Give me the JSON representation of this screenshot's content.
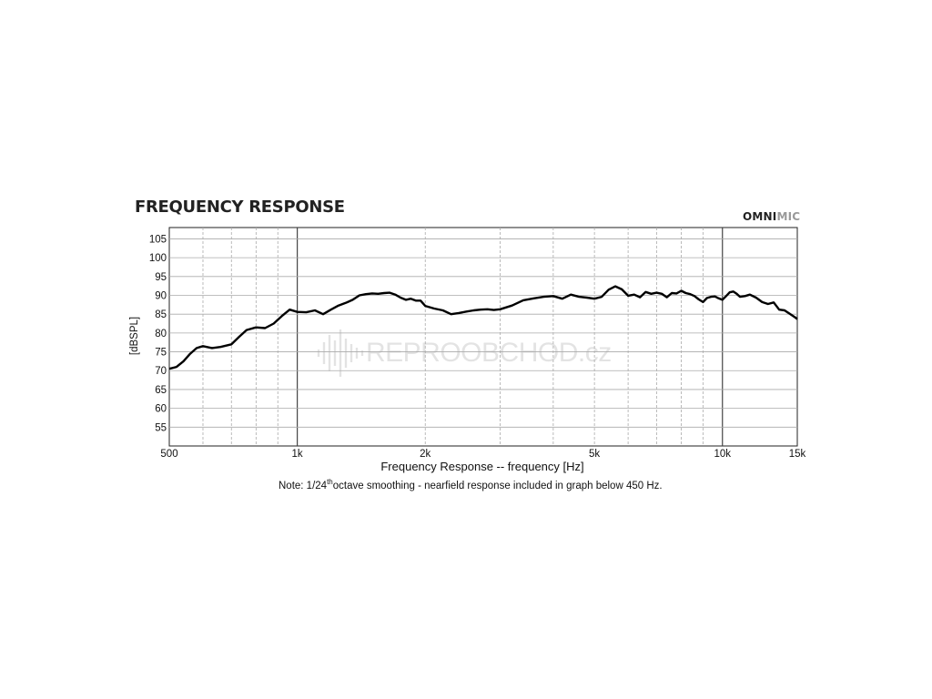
{
  "brand": {
    "part1": "OMNI",
    "part2": "MIC"
  },
  "watermark": {
    "text": "REPROOBCHOD.cz"
  },
  "chart_data": {
    "type": "line",
    "title": "FREQUENCY RESPONSE",
    "xlabel": "Frequency Response -- frequency [Hz]",
    "ylabel": "[dBSPL]",
    "note": {
      "before": "Note: 1/24",
      "sup": "th",
      "after": "octave smoothing - nearfield response included in graph below 450 Hz."
    },
    "x_scale": "log",
    "xlim": [
      500,
      15000
    ],
    "ylim": [
      50,
      108
    ],
    "x_ticks": [
      {
        "value": 500,
        "label": "500"
      },
      {
        "value": 1000,
        "label": "1k"
      },
      {
        "value": 2000,
        "label": "2k"
      },
      {
        "value": 5000,
        "label": "5k"
      },
      {
        "value": 10000,
        "label": "10k"
      },
      {
        "value": 15000,
        "label": "15k"
      }
    ],
    "y_ticks": [
      55,
      60,
      65,
      70,
      75,
      80,
      85,
      90,
      95,
      100,
      105
    ],
    "grid": true,
    "series": [
      {
        "x": [
          500,
          520,
          540,
          560,
          580,
          600,
          630,
          660,
          700,
          730,
          760,
          800,
          840,
          880,
          920,
          960,
          1000,
          1050,
          1100,
          1150,
          1200,
          1250,
          1300,
          1350,
          1400,
          1450,
          1500,
          1550,
          1600,
          1650,
          1700,
          1750,
          1800,
          1850,
          1900,
          1950,
          2000,
          2100,
          2200,
          2300,
          2400,
          2500,
          2600,
          2700,
          2800,
          2900,
          3000,
          3200,
          3400,
          3600,
          3800,
          4000,
          4200,
          4400,
          4600,
          4800,
          5000,
          5200,
          5400,
          5600,
          5800,
          6000,
          6200,
          6400,
          6600,
          6800,
          7000,
          7200,
          7400,
          7600,
          7800,
          8000,
          8200,
          8400,
          8600,
          8800,
          9000,
          9200,
          9400,
          9600,
          9800,
          10000,
          10200,
          10400,
          10600,
          10800,
          11000,
          11300,
          11600,
          12000,
          12400,
          12800,
          13200,
          13600,
          14000,
          14400,
          14800,
          15000
        ],
        "y": [
          70.5,
          71,
          72.5,
          74.5,
          76,
          76.5,
          76,
          76.3,
          77,
          79,
          80.8,
          81.5,
          81.3,
          82.5,
          84.5,
          86.2,
          85.6,
          85.5,
          86,
          85,
          86.2,
          87.3,
          88,
          88.8,
          90,
          90.3,
          90.5,
          90.4,
          90.6,
          90.7,
          90.2,
          89.4,
          88.8,
          89.1,
          88.6,
          88.6,
          87.2,
          86.5,
          86,
          85,
          85.3,
          85.7,
          86,
          86.2,
          86.3,
          86.1,
          86.3,
          87.3,
          88.7,
          89.2,
          89.6,
          89.8,
          89.1,
          90.2,
          89.6,
          89.4,
          89.1,
          89.6,
          91.5,
          92.4,
          91.6,
          89.9,
          90.2,
          89.5,
          90.9,
          90.4,
          90.7,
          90.4,
          89.5,
          90.6,
          90.5,
          91.2,
          90.6,
          90.3,
          89.8,
          88.9,
          88.2,
          89.3,
          89.6,
          89.7,
          89.2,
          88.8,
          89.8,
          90.8,
          91,
          90.4,
          89.6,
          89.8,
          90.2,
          89.4,
          88.2,
          87.7,
          88.1,
          86.2,
          86,
          85.1,
          84.2,
          83.7
        ]
      }
    ]
  }
}
